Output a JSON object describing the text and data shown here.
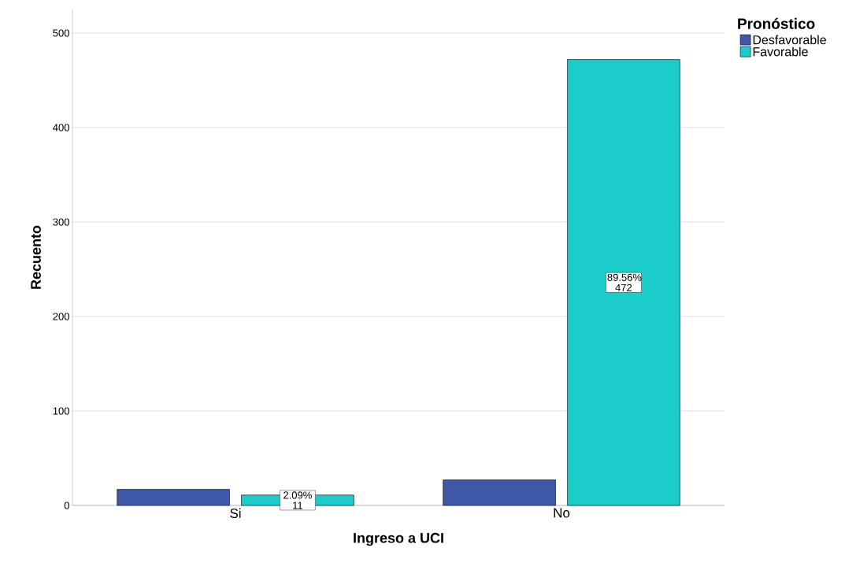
{
  "chart_data": {
    "type": "bar",
    "xlabel": "Ingreso a UCI",
    "ylabel": "Recuento",
    "legend_title": "Pronóstico",
    "categories": [
      "Si",
      "No"
    ],
    "series": [
      {
        "name": "Desfavorable",
        "color": "#3f58a8",
        "values": [
          17,
          27
        ]
      },
      {
        "name": "Favorable",
        "color": "#1ccccb",
        "values": [
          11,
          472
        ],
        "value_labels": [
          "2.09% 11",
          "89.56% 472"
        ]
      }
    ],
    "ylim": [
      0,
      525
    ],
    "yticks": [
      0,
      100,
      200,
      300,
      400,
      500
    ],
    "grid": "y",
    "legend": "top right"
  }
}
